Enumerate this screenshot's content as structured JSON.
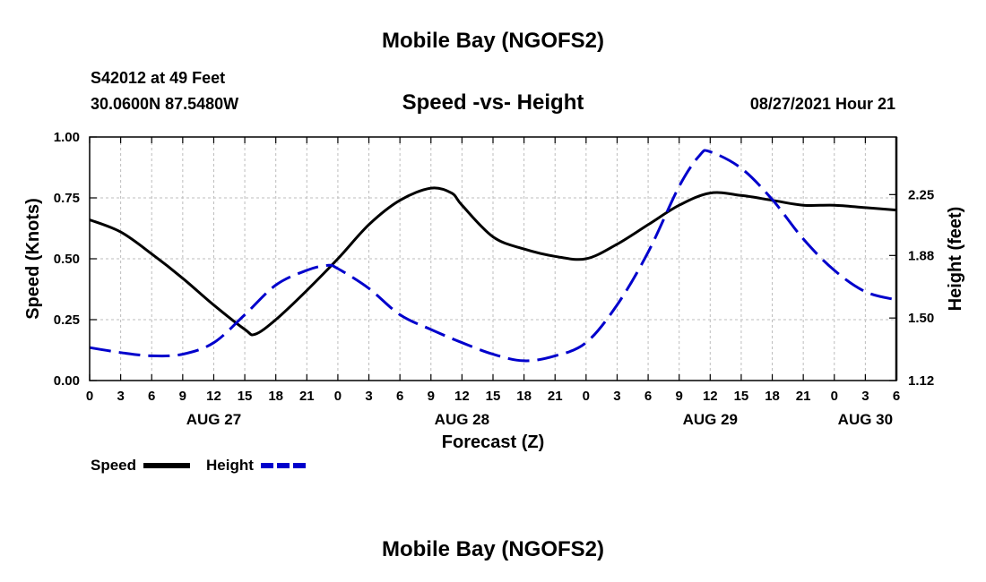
{
  "page": {
    "title": "Mobile Bay (NGOFS2)",
    "footer_title": "Mobile Bay (NGOFS2)",
    "station_line": "S42012 at 49 Feet",
    "coords_line": "30.0600N  87.5480W",
    "datetime_line": "08/27/2021 Hour 21"
  },
  "chart_data": {
    "type": "line",
    "title": "Speed -vs- Height",
    "xlabel": "Forecast (Z)",
    "ylabel_left": "Speed (Knots)",
    "ylabel_right": "Height (feet)",
    "x_range_hours": [
      0,
      78
    ],
    "ylim_left": [
      0,
      1
    ],
    "ylim_right": [
      1.12,
      2.6
    ],
    "left_ticks": [
      "0.00",
      "0.25",
      "0.50",
      "0.75",
      "1.00"
    ],
    "right_ticks": [
      "1.12",
      "1.50",
      "1.88",
      "2.25"
    ],
    "x_ticks": [
      {
        "hour": 0,
        "label": "0"
      },
      {
        "hour": 3,
        "label": "3"
      },
      {
        "hour": 6,
        "label": "6"
      },
      {
        "hour": 9,
        "label": "9"
      },
      {
        "hour": 12,
        "label": "12"
      },
      {
        "hour": 15,
        "label": "15"
      },
      {
        "hour": 18,
        "label": "18"
      },
      {
        "hour": 21,
        "label": "21"
      },
      {
        "hour": 24,
        "label": "0"
      },
      {
        "hour": 27,
        "label": "3"
      },
      {
        "hour": 30,
        "label": "6"
      },
      {
        "hour": 33,
        "label": "9"
      },
      {
        "hour": 36,
        "label": "12"
      },
      {
        "hour": 39,
        "label": "15"
      },
      {
        "hour": 42,
        "label": "18"
      },
      {
        "hour": 45,
        "label": "21"
      },
      {
        "hour": 48,
        "label": "0"
      },
      {
        "hour": 51,
        "label": "3"
      },
      {
        "hour": 54,
        "label": "6"
      },
      {
        "hour": 57,
        "label": "9"
      },
      {
        "hour": 60,
        "label": "12"
      },
      {
        "hour": 63,
        "label": "15"
      },
      {
        "hour": 66,
        "label": "18"
      },
      {
        "hour": 69,
        "label": "21"
      },
      {
        "hour": 72,
        "label": "0"
      },
      {
        "hour": 75,
        "label": "3"
      },
      {
        "hour": 78,
        "label": "6"
      }
    ],
    "date_labels": [
      {
        "hour": 12,
        "label": "AUG 27"
      },
      {
        "hour": 36,
        "label": "AUG 28"
      },
      {
        "hour": 60,
        "label": "AUG 29"
      },
      {
        "hour": 75,
        "label": "AUG 30"
      }
    ],
    "grid": true,
    "legend_position": "bottom-left",
    "series": [
      {
        "name": "Speed",
        "axis": "left",
        "color": "#000000",
        "style": "solid",
        "x": [
          0,
          3,
          6,
          9,
          12,
          15,
          16,
          18,
          21,
          24,
          27,
          30,
          33,
          35,
          36,
          39,
          42,
          45,
          48,
          51,
          54,
          57,
          60,
          63,
          66,
          69,
          72,
          75,
          78
        ],
        "values": [
          0.66,
          0.61,
          0.52,
          0.42,
          0.31,
          0.21,
          0.19,
          0.25,
          0.37,
          0.5,
          0.64,
          0.74,
          0.79,
          0.77,
          0.72,
          0.59,
          0.54,
          0.51,
          0.5,
          0.56,
          0.64,
          0.72,
          0.77,
          0.76,
          0.74,
          0.72,
          0.72,
          0.71,
          0.7
        ]
      },
      {
        "name": "Height",
        "axis": "right",
        "color": "#0000cc",
        "style": "dashed",
        "x": [
          0,
          3,
          6,
          9,
          12,
          15,
          18,
          21,
          23,
          24,
          27,
          30,
          33,
          36,
          39,
          42,
          45,
          48,
          51,
          54,
          57,
          59,
          60,
          63,
          66,
          69,
          72,
          75,
          78
        ],
        "values": [
          1.32,
          1.29,
          1.27,
          1.28,
          1.35,
          1.52,
          1.7,
          1.79,
          1.82,
          1.8,
          1.68,
          1.52,
          1.43,
          1.35,
          1.28,
          1.24,
          1.27,
          1.35,
          1.58,
          1.9,
          2.3,
          2.49,
          2.51,
          2.41,
          2.22,
          1.98,
          1.79,
          1.66,
          1.61
        ]
      }
    ]
  }
}
